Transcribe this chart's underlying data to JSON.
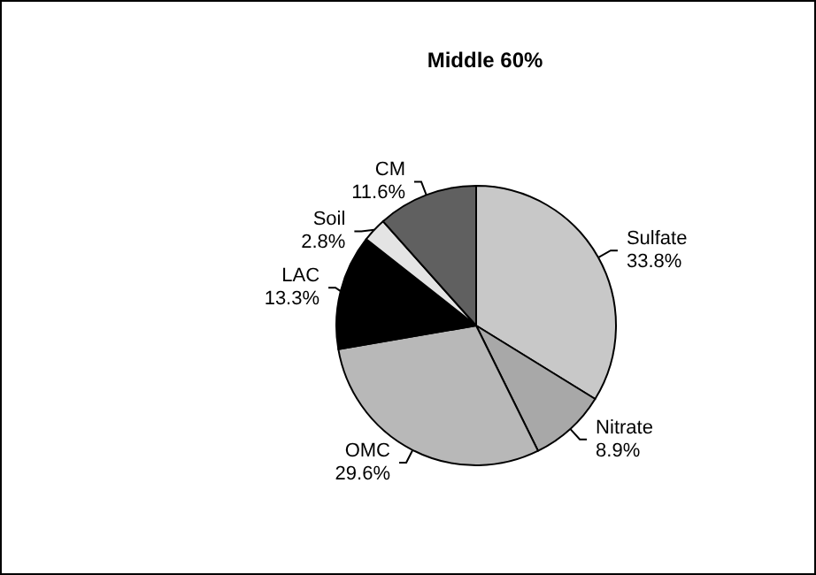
{
  "chart_data": {
    "type": "pie",
    "title": "Middle 60%",
    "categories": [
      "Sulfate",
      "Nitrate",
      "OMC",
      "LAC",
      "Soil",
      "CM"
    ],
    "values": [
      33.8,
      8.9,
      29.6,
      13.3,
      2.8,
      11.6
    ],
    "value_labels": [
      "33.8%",
      "8.9%",
      "29.6%",
      "13.3%",
      "2.8%",
      "11.6%"
    ],
    "colors": [
      "#c8c8c8",
      "#a8a8a8",
      "#b8b8b8",
      "#000000",
      "#e4e4e4",
      "#606060"
    ],
    "legend": false
  }
}
